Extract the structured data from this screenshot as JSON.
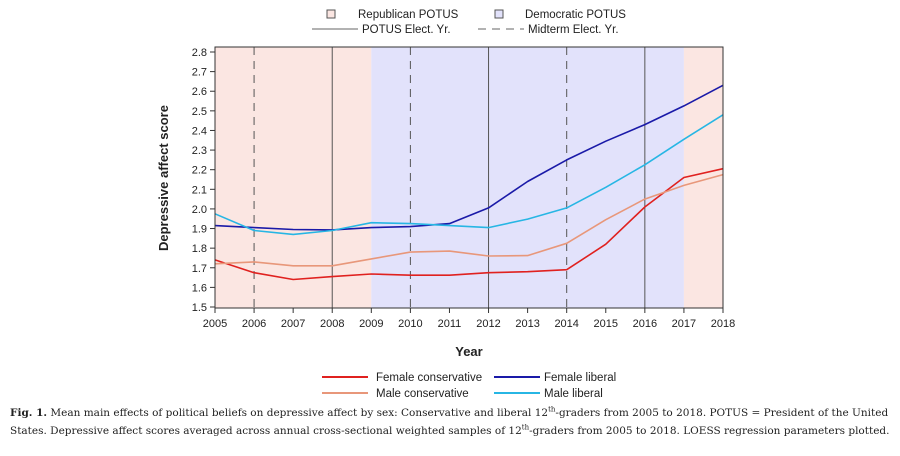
{
  "chart_data": {
    "type": "line",
    "xlabel": "Year",
    "ylabel": "Depressive affect score",
    "xlim": [
      2005,
      2018
    ],
    "ylim": [
      1.5,
      2.8
    ],
    "x_ticks": [
      "2005",
      "2006",
      "2007",
      "2008",
      "2009",
      "2010",
      "2011",
      "2012",
      "2013",
      "2014",
      "2015",
      "2016",
      "2017",
      "2018"
    ],
    "y_ticks": [
      "1.5",
      "1.6",
      "1.7",
      "1.8",
      "1.9",
      "2.0",
      "2.1",
      "2.2",
      "2.3",
      "2.4",
      "2.5",
      "2.6",
      "2.7",
      "2.8"
    ],
    "grid": false,
    "background_bands": [
      {
        "party": "republican",
        "from": 2005,
        "to": 2009,
        "color": "#fbe6e2"
      },
      {
        "party": "democratic",
        "from": 2009,
        "to": 2017,
        "color": "#e2e2fb"
      },
      {
        "party": "republican",
        "from": 2017,
        "to": 2018,
        "color": "#fbe6e2"
      }
    ],
    "potus_election_years": [
      2008,
      2012,
      2016
    ],
    "midterm_election_years": [
      2006,
      2010,
      2014,
      2018
    ],
    "top_legend": {
      "republican": "Republican POTUS",
      "democratic": "Democratic POTUS",
      "potus_elect": "POTUS Elect. Yr.",
      "midterm_elect": "Midterm Elect. Yr."
    },
    "x": [
      2005,
      2006,
      2007,
      2008,
      2009,
      2010,
      2011,
      2012,
      2013,
      2014,
      2015,
      2016,
      2017,
      2018
    ],
    "series": [
      {
        "name": "Female conservative",
        "color": "#e0211f",
        "values": [
          1.74,
          1.675,
          1.64,
          1.655,
          1.668,
          1.662,
          1.662,
          1.675,
          1.68,
          1.69,
          1.82,
          2.01,
          2.16,
          2.205
        ]
      },
      {
        "name": "Male conservative",
        "color": "#e8977a",
        "values": [
          1.72,
          1.73,
          1.71,
          1.71,
          1.745,
          1.78,
          1.785,
          1.76,
          1.762,
          1.825,
          1.945,
          2.05,
          2.12,
          2.175
        ]
      },
      {
        "name": "Female liberal",
        "color": "#1a1aa8",
        "values": [
          1.915,
          1.905,
          1.895,
          1.893,
          1.905,
          1.91,
          1.925,
          2.005,
          2.14,
          2.25,
          2.345,
          2.43,
          2.525,
          2.63
        ]
      },
      {
        "name": "Male liberal",
        "color": "#27b6e4",
        "values": [
          1.975,
          1.89,
          1.87,
          1.89,
          1.93,
          1.925,
          1.915,
          1.905,
          1.948,
          2.005,
          2.11,
          2.225,
          2.355,
          2.48
        ]
      }
    ]
  },
  "caption": {
    "label": "Fig. 1.",
    "text_a": " Mean main effects of political beliefs on depressive affect by sex: Conservative and liberal 12",
    "sup_a": "th",
    "text_b": "-graders from 2005 to 2018. POTUS = President of the United States. Depressive affect scores averaged across annual cross-sectional weighted samples of 12",
    "sup_b": "th",
    "text_c": "-graders from 2005 to 2018. LOESS regression parameters plotted."
  }
}
